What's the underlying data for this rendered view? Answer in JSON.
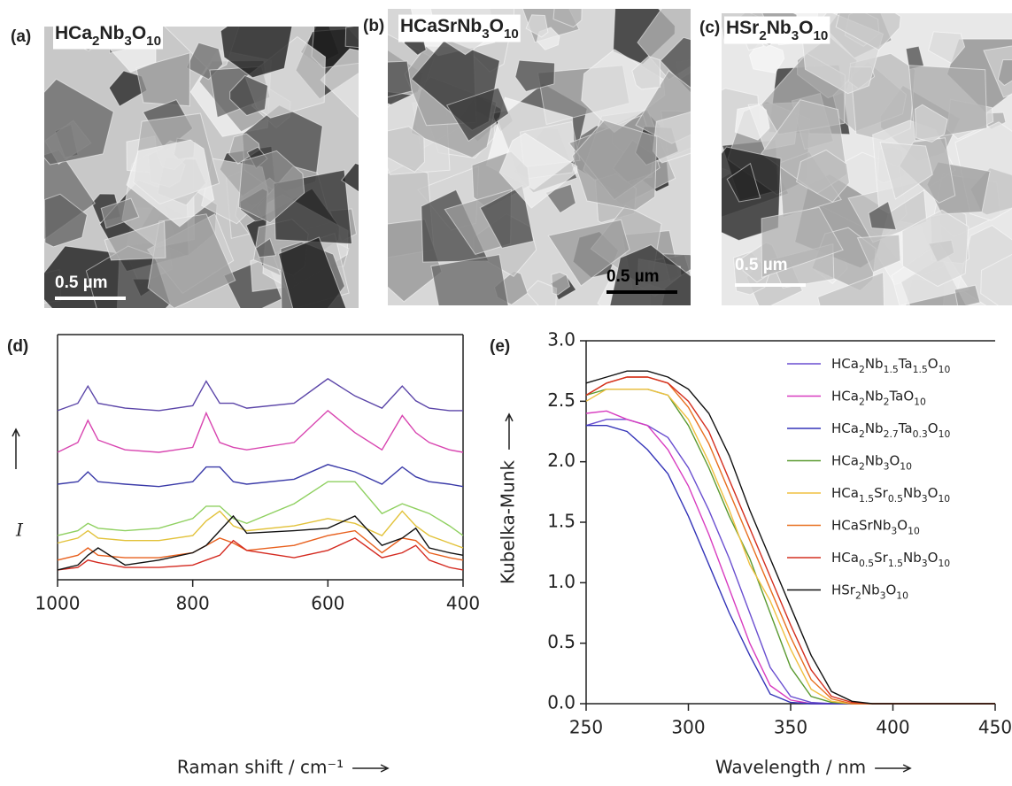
{
  "images": [
    {
      "label": "(a)",
      "caption": "HCa2Nb3O10",
      "scale_bar": "0.5 µm"
    },
    {
      "label": "(b)",
      "caption": "HCaSrNb3O10",
      "scale_bar": "0.5 µm"
    },
    {
      "label": "(c)",
      "caption": "HSr2Nb3O10",
      "scale_bar": "0.5 µm"
    }
  ],
  "chart_data": [
    {
      "type": "line",
      "panel": "(d)",
      "x_label": "Raman shift / cm⁻¹",
      "y_label": "I",
      "x": [
        1000,
        970,
        955,
        940,
        900,
        850,
        800,
        780,
        760,
        740,
        720,
        650,
        600,
        560,
        520,
        490,
        470,
        450,
        420,
        400
      ],
      "xlim": [
        1000,
        400
      ],
      "xticks": [
        1000,
        800,
        600,
        400
      ],
      "ylim": [
        0,
        100
      ],
      "series": [
        {
          "color": "#5b45a8",
          "values": [
            69,
            72,
            79,
            72,
            70,
            69,
            71,
            81,
            72,
            72,
            70,
            72,
            82,
            75,
            70,
            79,
            73,
            70,
            69,
            69
          ]
        },
        {
          "color": "#d845b0",
          "values": [
            52,
            56,
            65,
            57,
            53,
            52,
            54,
            68,
            56,
            54,
            53,
            56,
            69,
            60,
            53,
            67,
            60,
            56,
            53,
            52
          ]
        },
        {
          "color": "#3a3aa8",
          "values": [
            39,
            40,
            44,
            40,
            39,
            38,
            40,
            46,
            46,
            40,
            39,
            41,
            47,
            44,
            39,
            46,
            42,
            40,
            39,
            38
          ]
        },
        {
          "color": "#8fd060",
          "values": [
            18,
            20,
            23,
            21,
            20,
            21,
            25,
            30,
            30,
            25,
            23,
            31,
            40,
            40,
            27,
            31,
            29,
            27,
            22,
            18
          ]
        },
        {
          "color": "#e2c23a",
          "values": [
            15,
            17,
            20,
            17,
            16,
            16,
            18,
            24,
            28,
            22,
            20,
            22,
            25,
            23,
            18,
            28,
            22,
            18,
            15,
            13
          ]
        },
        {
          "color": "#e8601e",
          "values": [
            8,
            10,
            13,
            10,
            9,
            9,
            11,
            14,
            17,
            15,
            12,
            14,
            18,
            20,
            11,
            17,
            16,
            11,
            9,
            8
          ]
        },
        {
          "color": "#d42a20",
          "values": [
            4,
            5,
            8,
            7,
            5,
            5,
            6,
            8,
            10,
            16,
            12,
            9,
            12,
            17,
            9,
            11,
            14,
            8,
            5,
            4
          ]
        },
        {
          "color": "#111111",
          "values": [
            4,
            6,
            10,
            13,
            6,
            8,
            11,
            14,
            20,
            26,
            19,
            20,
            21,
            26,
            14,
            17,
            21,
            13,
            11,
            10
          ]
        }
      ]
    },
    {
      "type": "line",
      "panel": "(e)",
      "x_label": "Wavelength / nm",
      "y_label": "Kubelka-Munk",
      "x": [
        250,
        260,
        270,
        280,
        290,
        300,
        310,
        320,
        330,
        340,
        350,
        360,
        370,
        380,
        390,
        450
      ],
      "xlim": [
        250,
        450
      ],
      "xticks": [
        250,
        300,
        350,
        400,
        450
      ],
      "ylim": [
        0,
        3
      ],
      "yticks": [
        {
          "value": 0,
          "label": "0.0"
        },
        0.5,
        {
          "value": 1,
          "label": "1.0"
        },
        1.5,
        {
          "value": 2,
          "label": "2.0"
        },
        2.5,
        {
          "value": 3,
          "label": "3.0"
        }
      ],
      "legend": "upper right",
      "series": [
        {
          "name": "HCa2Nb1.5Ta1.5O10",
          "color": "#6a4fd0",
          "values": [
            2.3,
            2.35,
            2.35,
            2.3,
            2.2,
            1.95,
            1.6,
            1.2,
            0.75,
            0.3,
            0.06,
            0.01,
            0,
            0,
            0,
            0
          ]
        },
        {
          "name": "HCa2Nb2TaO10",
          "color": "#d83cc0",
          "values": [
            2.4,
            2.42,
            2.35,
            2.3,
            2.1,
            1.8,
            1.4,
            0.95,
            0.5,
            0.15,
            0.03,
            0,
            0,
            0,
            0,
            0
          ]
        },
        {
          "name": "HCa2Nb2.7Ta0.3O10",
          "color": "#3434b8",
          "values": [
            2.3,
            2.3,
            2.25,
            2.1,
            1.9,
            1.55,
            1.15,
            0.75,
            0.4,
            0.08,
            0.01,
            0,
            0,
            0,
            0,
            0
          ]
        },
        {
          "name": "HCa2Nb3O10",
          "color": "#5a9a30",
          "values": [
            2.55,
            2.6,
            2.6,
            2.6,
            2.55,
            2.3,
            1.95,
            1.55,
            1.2,
            0.75,
            0.3,
            0.06,
            0.01,
            0,
            0,
            0
          ]
        },
        {
          "name": "HCa1.5Sr0.5Nb3O10",
          "color": "#f0c040",
          "values": [
            2.5,
            2.6,
            2.6,
            2.6,
            2.55,
            2.35,
            2,
            1.6,
            1.15,
            0.85,
            0.45,
            0.12,
            0.02,
            0,
            0,
            0
          ]
        },
        {
          "name": "HCaSrNb3O10",
          "color": "#e87020",
          "values": [
            2.55,
            2.65,
            2.7,
            2.7,
            2.65,
            2.45,
            2.15,
            1.75,
            1.35,
            0.95,
            0.55,
            0.2,
            0.04,
            0,
            0,
            0
          ]
        },
        {
          "name": "HCa0.5Sr1.5Nb3O10",
          "color": "#d43020",
          "values": [
            2.55,
            2.65,
            2.7,
            2.7,
            2.65,
            2.5,
            2.25,
            1.85,
            1.45,
            1.05,
            0.65,
            0.28,
            0.06,
            0.01,
            0,
            0
          ]
        },
        {
          "name": "HSr2Nb3O10",
          "color": "#111111",
          "values": [
            2.65,
            2.7,
            2.75,
            2.75,
            2.7,
            2.6,
            2.4,
            2.05,
            1.6,
            1.2,
            0.8,
            0.4,
            0.1,
            0.02,
            0,
            0
          ]
        }
      ]
    }
  ]
}
